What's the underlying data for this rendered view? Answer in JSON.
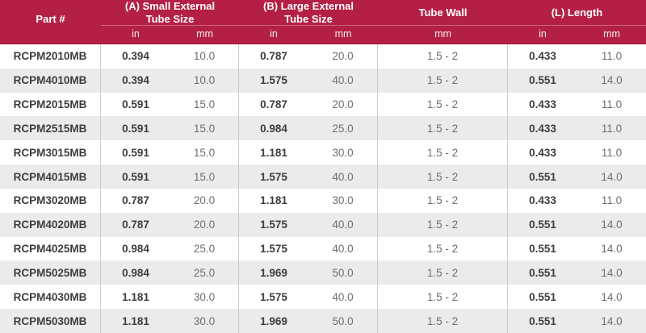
{
  "table": {
    "header": {
      "part_label": "Part #",
      "group_a_label": "(A) Small External Tube Size",
      "group_b_label": "(B) Large External Tube Size",
      "group_wall_label": "Tube Wall",
      "group_l_label": "(L) Length",
      "unit_in": "in",
      "unit_mm": "mm"
    },
    "columns": [
      "part",
      "a_in",
      "a_mm",
      "b_in",
      "b_mm",
      "wall",
      "l_in",
      "l_mm"
    ],
    "rows": [
      {
        "part": "RCPM2010MB",
        "a_in": "0.394",
        "a_mm": "10.0",
        "b_in": "0.787",
        "b_mm": "20.0",
        "wall": "1.5 - 2",
        "l_in": "0.433",
        "l_mm": "11.0"
      },
      {
        "part": "RCPM4010MB",
        "a_in": "0.394",
        "a_mm": "10.0",
        "b_in": "1.575",
        "b_mm": "40.0",
        "wall": "1.5 - 2",
        "l_in": "0.551",
        "l_mm": "14.0"
      },
      {
        "part": "RCPM2015MB",
        "a_in": "0.591",
        "a_mm": "15.0",
        "b_in": "0.787",
        "b_mm": "20.0",
        "wall": "1.5 - 2",
        "l_in": "0.433",
        "l_mm": "11.0"
      },
      {
        "part": "RCPM2515MB",
        "a_in": "0.591",
        "a_mm": "15.0",
        "b_in": "0.984",
        "b_mm": "25.0",
        "wall": "1.5 - 2",
        "l_in": "0.433",
        "l_mm": "11.0"
      },
      {
        "part": "RCPM3015MB",
        "a_in": "0.591",
        "a_mm": "15.0",
        "b_in": "1.181",
        "b_mm": "30.0",
        "wall": "1.5 - 2",
        "l_in": "0.433",
        "l_mm": "11.0"
      },
      {
        "part": "RCPM4015MB",
        "a_in": "0.591",
        "a_mm": "15.0",
        "b_in": "1.575",
        "b_mm": "40.0",
        "wall": "1.5 - 2",
        "l_in": "0.551",
        "l_mm": "14.0"
      },
      {
        "part": "RCPM3020MB",
        "a_in": "0.787",
        "a_mm": "20.0",
        "b_in": "1.181",
        "b_mm": "30.0",
        "wall": "1.5 - 2",
        "l_in": "0.433",
        "l_mm": "11.0"
      },
      {
        "part": "RCPM4020MB",
        "a_in": "0.787",
        "a_mm": "20.0",
        "b_in": "1.575",
        "b_mm": "40.0",
        "wall": "1.5 - 2",
        "l_in": "0.551",
        "l_mm": "14.0"
      },
      {
        "part": "RCPM4025MB",
        "a_in": "0.984",
        "a_mm": "25.0",
        "b_in": "1.575",
        "b_mm": "40.0",
        "wall": "1.5 - 2",
        "l_in": "0.551",
        "l_mm": "14.0"
      },
      {
        "part": "RCPM5025MB",
        "a_in": "0.984",
        "a_mm": "25.0",
        "b_in": "1.969",
        "b_mm": "50.0",
        "wall": "1.5 - 2",
        "l_in": "0.551",
        "l_mm": "14.0"
      },
      {
        "part": "RCPM4030MB",
        "a_in": "1.181",
        "a_mm": "30.0",
        "b_in": "1.575",
        "b_mm": "40.0",
        "wall": "1.5 - 2",
        "l_in": "0.551",
        "l_mm": "14.0"
      },
      {
        "part": "RCPM5030MB",
        "a_in": "1.181",
        "a_mm": "30.0",
        "b_in": "1.969",
        "b_mm": "50.0",
        "wall": "1.5 - 2",
        "l_in": "0.551",
        "l_mm": "14.0"
      }
    ]
  },
  "colors": {
    "header_bg": "#b42045",
    "header_border_bottom": "#9a1a3c",
    "stripe": "#ebebeb",
    "divider": "#cccccc",
    "text_strong": "#3d3d3d",
    "text_dim": "#6e6e6e"
  }
}
